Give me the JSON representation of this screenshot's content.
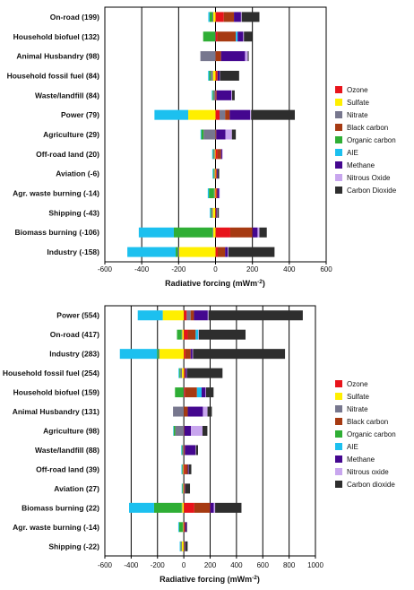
{
  "colors": {
    "Ozone": "#e8141b",
    "Sulfate": "#ffef00",
    "Nitrate": "#77778e",
    "Black carbon": "#a63a12",
    "Organic carbon": "#2fae35",
    "AIE": "#1cc0ef",
    "Methane": "#44078f",
    "Nitrous oxide": "#c8a6ee",
    "Carbon dioxide": "#2e2e2e"
  },
  "chart_data": [
    {
      "type": "bar",
      "orientation": "horizontal",
      "stacked": true,
      "title": "",
      "xlabel": "Radiative forcing (mWm",
      "xlabel_sup": "-2",
      "xlabel_end": ")",
      "xlim": [
        -600,
        600
      ],
      "xticks": [
        -600,
        -400,
        -200,
        0,
        200,
        400,
        600
      ],
      "legend_position": "right",
      "legend": [
        "Ozone",
        "Sulfate",
        "Nitrate",
        "Black carbon",
        "Organic carbon",
        "AIE",
        "Methane",
        "Nitrous Oxide",
        "Carbon Dioxide"
      ],
      "categories": [
        "On-road (199)",
        "Household biofuel (132)",
        "Animal Husbandry (98)",
        "Household fossil fuel (84)",
        "Waste/landfill (84)",
        "Power (79)",
        "Agriculture (29)",
        "Off-road land (20)",
        "Aviation (-6)",
        "Agr. waste burning (-14)",
        "Shipping (-43)",
        "Biomass burning (-106)",
        "Industry (-158)"
      ],
      "series": [
        {
          "name": "Ozone",
          "values": [
            45,
            10,
            0,
            8,
            2,
            22,
            0,
            10,
            4,
            6,
            -2,
            80,
            12
          ]
        },
        {
          "name": "Sulfate",
          "values": [
            -12,
            0,
            0,
            -14,
            0,
            -148,
            0,
            -4,
            -4,
            -4,
            -13,
            -12,
            -198
          ]
        },
        {
          "name": "Nitrate",
          "values": [
            -5,
            -2,
            -82,
            -12,
            -10,
            30,
            -65,
            -6,
            -4,
            -4,
            -8,
            -4,
            -6
          ]
        },
        {
          "name": "Black carbon",
          "values": [
            55,
            100,
            30,
            4,
            4,
            25,
            4,
            20,
            4,
            4,
            4,
            120,
            40
          ]
        },
        {
          "name": "Organic carbon",
          "values": [
            -15,
            -65,
            0,
            -8,
            -6,
            0,
            -12,
            -4,
            -4,
            -28,
            -4,
            -210,
            -12
          ]
        },
        {
          "name": "AIE",
          "values": [
            -7,
            10,
            0,
            -6,
            -4,
            -183,
            -4,
            -4,
            -4,
            -6,
            -4,
            -190,
            -262
          ]
        },
        {
          "name": "Methane",
          "values": [
            38,
            30,
            130,
            10,
            80,
            110,
            50,
            6,
            4,
            10,
            4,
            28,
            14
          ]
        },
        {
          "name": "Nitrous Oxide",
          "values": [
            4,
            4,
            15,
            2,
            4,
            6,
            35,
            2,
            0,
            2,
            2,
            10,
            4
          ]
        },
        {
          "name": "Carbon Dioxide",
          "values": [
            96,
            45,
            5,
            104,
            14,
            237,
            21,
            0,
            8,
            0,
            8,
            40,
            250
          ]
        }
      ]
    },
    {
      "type": "bar",
      "orientation": "horizontal",
      "stacked": true,
      "title": "",
      "xlabel": "Radiative forcing (mWm",
      "xlabel_sup": "-2",
      "xlabel_end": ")",
      "xlim": [
        -600,
        1000
      ],
      "xticks": [
        -600,
        -400,
        -200,
        0,
        200,
        400,
        600,
        800,
        1000
      ],
      "legend_position": "right",
      "legend": [
        "Ozone",
        "Sulfate",
        "Nitrate",
        "Black carbon",
        "Organic carbon",
        "AIE",
        "Methane",
        "Nitrous oxide",
        "Carbon dioxide"
      ],
      "categories": [
        "Power (554)",
        "On-road (417)",
        "Industry (283)",
        "Household fossil fuel (254)",
        "Household biofuel (159)",
        "Animal Husbandry (131)",
        "Agriculture (98)",
        "Waste/landfill (88)",
        "Off-road land (39)",
        "Aviation (27)",
        "Biomass burning (22)",
        "Agr. waste burning (-14)",
        "Shipping (-22)"
      ],
      "series": [
        {
          "name": "Ozone",
          "values": [
            22,
            30,
            12,
            8,
            10,
            0,
            0,
            4,
            10,
            4,
            80,
            6,
            -2
          ]
        },
        {
          "name": "Sulfate",
          "values": [
            -160,
            -12,
            -185,
            -14,
            0,
            0,
            0,
            0,
            -4,
            -4,
            -12,
            -4,
            -13
          ]
        },
        {
          "name": "Nitrate",
          "values": [
            30,
            -5,
            -6,
            -12,
            -2,
            -82,
            -65,
            -10,
            -6,
            -4,
            -4,
            -4,
            -8
          ]
        },
        {
          "name": "Black carbon",
          "values": [
            25,
            60,
            40,
            4,
            90,
            30,
            4,
            4,
            20,
            4,
            120,
            4,
            4
          ]
        },
        {
          "name": "Organic carbon",
          "values": [
            0,
            -35,
            -12,
            -8,
            -65,
            0,
            -12,
            -6,
            -4,
            -4,
            -210,
            -28,
            -4
          ]
        },
        {
          "name": "AIE",
          "values": [
            -190,
            20,
            -283,
            -6,
            35,
            0,
            -4,
            -4,
            -4,
            -4,
            -190,
            -6,
            -4
          ]
        },
        {
          "name": "Methane",
          "values": [
            105,
            0,
            14,
            10,
            30,
            115,
            50,
            80,
            6,
            4,
            28,
            10,
            4
          ]
        },
        {
          "name": "Nitrous oxide",
          "values": [
            6,
            4,
            4,
            2,
            4,
            35,
            88,
            4,
            2,
            0,
            10,
            2,
            2
          ]
        },
        {
          "name": "Carbon dioxide",
          "values": [
            716,
            355,
            699,
            270,
            57,
            33,
            37,
            16,
            19,
            35,
            200,
            4,
            19
          ]
        }
      ]
    }
  ]
}
